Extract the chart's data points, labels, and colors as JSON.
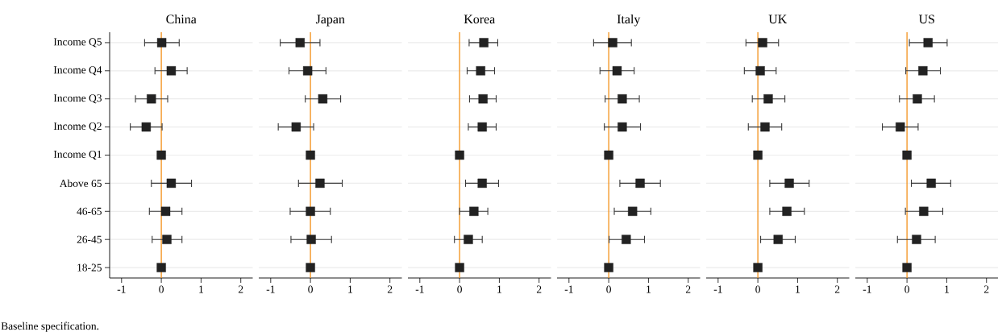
{
  "chart_data": [
    {
      "type": "scatter",
      "title": "China",
      "orientation": "horizontal",
      "categories": [
        "Income Q5",
        "Income Q4",
        "Income Q3",
        "Income Q2",
        "Income Q1",
        "Above 65",
        "46-65",
        "26-45",
        "18-25"
      ],
      "values": [
        0.01,
        0.25,
        -0.25,
        -0.38,
        0,
        0.25,
        0.11,
        0.14,
        0
      ],
      "errors": [
        [
          -0.42,
          0.45
        ],
        [
          -0.16,
          0.65
        ],
        [
          -0.65,
          0.16
        ],
        [
          -0.78,
          0.02
        ],
        null,
        [
          -0.25,
          0.76
        ],
        [
          -0.3,
          0.52
        ],
        [
          -0.23,
          0.52
        ],
        null
      ],
      "color": "#222222",
      "marker": "square",
      "xlim": [
        -1.3,
        2.3
      ],
      "xticks": [
        -1,
        0,
        1,
        2
      ],
      "grid": "y",
      "ref_lines": [
        {
          "axis": "x",
          "value": 0,
          "color": "#f39019"
        }
      ],
      "annotations": [
        "Baseline specification."
      ]
    },
    {
      "type": "scatter",
      "title": "Japan",
      "orientation": "horizontal",
      "categories": [
        null,
        null,
        null,
        null,
        null,
        null,
        null,
        null,
        null
      ],
      "values": [
        -0.26,
        -0.07,
        0.31,
        -0.36,
        0,
        0.24,
        0,
        0.02,
        0
      ],
      "errors": [
        [
          -0.76,
          0.24
        ],
        [
          -0.54,
          0.39
        ],
        [
          -0.13,
          0.76
        ],
        [
          -0.81,
          0.08
        ],
        null,
        [
          -0.3,
          0.8
        ],
        [
          -0.51,
          0.5
        ],
        [
          -0.49,
          0.53
        ],
        null
      ],
      "color": "#222222",
      "marker": "square",
      "xlim": [
        -1.3,
        2.3
      ],
      "xticks": [
        -1,
        0,
        1,
        2
      ],
      "grid": "y",
      "tick_labels": "x",
      "ref_lines": [
        {
          "axis": "x",
          "value": 0,
          "color": "#f39019"
        }
      ]
    },
    {
      "type": "scatter",
      "title": "Korea",
      "orientation": "horizontal",
      "categories": [
        null,
        null,
        null,
        null,
        null,
        null,
        null,
        null,
        null
      ],
      "values": [
        0.61,
        0.53,
        0.59,
        0.57,
        0,
        0.57,
        0.36,
        0.22,
        0
      ],
      "errors": [
        [
          0.24,
          0.96
        ],
        [
          0.19,
          0.88
        ],
        [
          0.25,
          0.92
        ],
        [
          0.22,
          0.92
        ],
        null,
        [
          0.15,
          0.98
        ],
        [
          0.0,
          0.71
        ],
        [
          -0.13,
          0.57
        ],
        null
      ],
      "color": "#222222",
      "marker": "square",
      "xlim": [
        -1.3,
        2.3
      ],
      "xticks": [
        -1,
        0,
        1,
        2
      ],
      "grid": "y",
      "tick_labels": "x",
      "ref_lines": [
        {
          "axis": "x",
          "value": 0,
          "color": "#f39019"
        }
      ]
    },
    {
      "type": "scatter",
      "title": "Italy",
      "orientation": "horizontal",
      "categories": [
        null,
        null,
        null,
        null,
        null,
        null,
        null,
        null,
        null
      ],
      "values": [
        0.1,
        0.21,
        0.34,
        0.34,
        0,
        0.79,
        0.6,
        0.44,
        0
      ],
      "errors": [
        [
          -0.38,
          0.57
        ],
        [
          -0.22,
          0.64
        ],
        [
          -0.09,
          0.77
        ],
        [
          -0.11,
          0.8
        ],
        null,
        [
          0.28,
          1.3
        ],
        [
          0.14,
          1.06
        ],
        [
          0.01,
          0.9
        ],
        null
      ],
      "color": "#222222",
      "marker": "square",
      "xlim": [
        -1.3,
        2.3
      ],
      "xticks": [
        -1,
        0,
        1,
        2
      ],
      "grid": "y",
      "tick_labels": "x",
      "ref_lines": [
        {
          "axis": "x",
          "value": 0,
          "color": "#f39019"
        }
      ]
    },
    {
      "type": "scatter",
      "title": "UK",
      "orientation": "horizontal",
      "categories": [
        null,
        null,
        null,
        null,
        null,
        null,
        null,
        null,
        null
      ],
      "values": [
        0.12,
        0.06,
        0.26,
        0.18,
        0,
        0.79,
        0.73,
        0.51,
        0
      ],
      "errors": [
        [
          -0.3,
          0.52
        ],
        [
          -0.34,
          0.46
        ],
        [
          -0.14,
          0.68
        ],
        [
          -0.24,
          0.6
        ],
        null,
        [
          0.3,
          1.29
        ],
        [
          0.3,
          1.17
        ],
        [
          0.07,
          0.94
        ],
        null
      ],
      "color": "#222222",
      "marker": "square",
      "xlim": [
        -1.3,
        2.3
      ],
      "xticks": [
        -1,
        0,
        1,
        2
      ],
      "grid": "y",
      "tick_labels": "x",
      "ref_lines": [
        {
          "axis": "x",
          "value": 0,
          "color": "#f39019"
        }
      ]
    },
    {
      "type": "scatter",
      "title": "US",
      "orientation": "horizontal",
      "categories": [
        null,
        null,
        null,
        null,
        null,
        null,
        null,
        null,
        null
      ],
      "values": [
        0.53,
        0.4,
        0.26,
        -0.17,
        0,
        0.61,
        0.42,
        0.24,
        0
      ],
      "errors": [
        [
          0.06,
          1.01
        ],
        [
          -0.03,
          0.84
        ],
        [
          -0.19,
          0.69
        ],
        [
          -0.62,
          0.28
        ],
        null,
        [
          0.11,
          1.1
        ],
        [
          -0.04,
          0.9
        ],
        [
          -0.24,
          0.71
        ],
        null
      ],
      "color": "#222222",
      "marker": "square",
      "xlim": [
        -1.3,
        2.3
      ],
      "xticks": [
        -1,
        0,
        1,
        2
      ],
      "grid": "y",
      "tick_labels": "x",
      "ref_lines": [
        {
          "axis": "x",
          "value": 0,
          "color": "#f39019"
        }
      ]
    }
  ]
}
